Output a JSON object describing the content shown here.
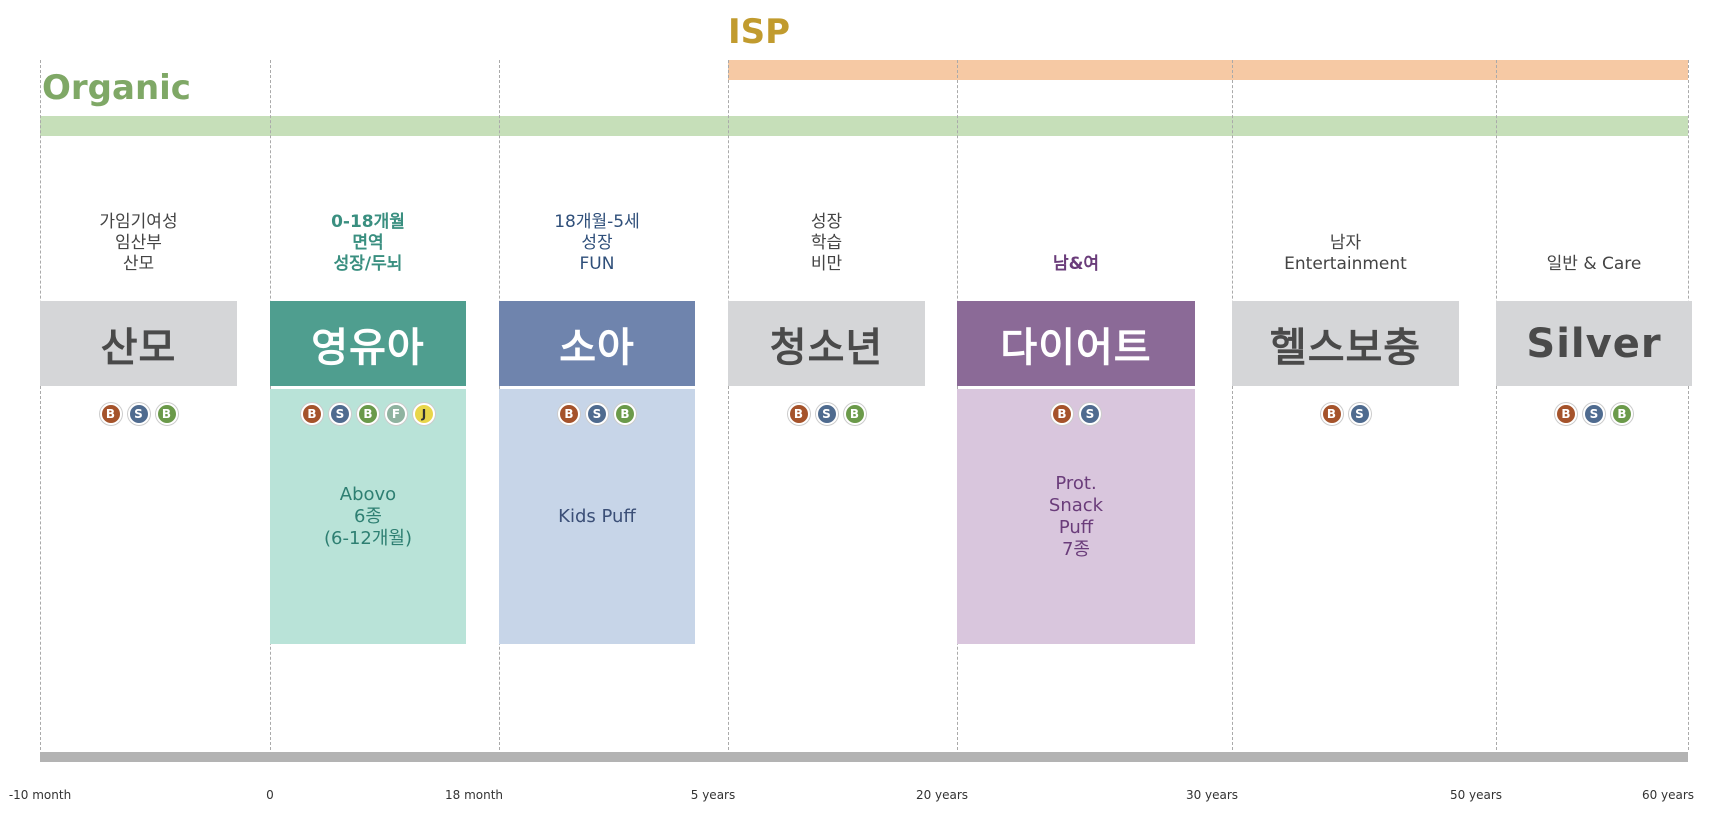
{
  "header": {
    "isp_label": "ISP",
    "organic_label": "Organic"
  },
  "colors": {
    "isp": "#c19b2e",
    "isp_bar": "#f6c9a4",
    "organic": "#7fa866",
    "organic_bar": "#c6dfb9",
    "axis_bar": "#b3b3b3"
  },
  "segments": [
    {
      "name": "산모",
      "labels": [
        "가임기여성",
        "임산부",
        "산모"
      ],
      "label_color": "#444444",
      "box_color": "#d5d6d8",
      "text_color": "#4a4a4a",
      "badges": [
        "B",
        "S",
        "B"
      ],
      "product": null
    },
    {
      "name": "영유아",
      "labels": [
        "0-18개월",
        "면역",
        "성장/두뇌"
      ],
      "label_color": "#3a8f80",
      "box_color": "#4f9e8f",
      "text_color": "#ffffff",
      "badges": [
        "B",
        "S",
        "B",
        "F",
        "J"
      ],
      "product": {
        "lines": [
          "Abovo",
          "6종",
          "(6-12개월)"
        ],
        "bg": "#b9e3d8",
        "color": "#2e7f72"
      }
    },
    {
      "name": "소아",
      "labels": [
        "18개월-5세",
        "성장",
        "FUN"
      ],
      "label_color": "#2f4f7a",
      "box_color": "#6f84ad",
      "text_color": "#ffffff",
      "badges": [
        "B",
        "S",
        "B"
      ],
      "product": {
        "lines": [
          "Kids Puff"
        ],
        "bg": "#c7d5e8",
        "color": "#3b4f77"
      }
    },
    {
      "name": "청소년",
      "labels": [
        "성장",
        "학습",
        "비만"
      ],
      "label_color": "#444444",
      "box_color": "#d5d6d8",
      "text_color": "#4a4a4a",
      "badges": [
        "B",
        "S",
        "B"
      ],
      "product": null
    },
    {
      "name": "다이어트",
      "labels": [
        "남&여"
      ],
      "label_color": "#6a3c7a",
      "box_color": "#8b6a97",
      "text_color": "#ffffff",
      "badges": [
        "B",
        "S"
      ],
      "product": {
        "lines": [
          "Prot.",
          "Snack",
          "Puff",
          "7종"
        ],
        "bg": "#d9c6dd",
        "color": "#6a3c7a"
      }
    },
    {
      "name": "헬스보충",
      "labels": [
        "남자",
        "Entertainment"
      ],
      "label_color": "#444444",
      "box_color": "#d5d6d8",
      "text_color": "#4a4a4a",
      "badges": [
        "B",
        "S"
      ],
      "product": null
    },
    {
      "name": "Silver",
      "labels": [
        "일반 & Care"
      ],
      "label_color": "#444444",
      "box_color": "#d5d6d8",
      "text_color": "#4a4a4a",
      "badges": [
        "B",
        "S",
        "B"
      ],
      "product": null
    }
  ],
  "badge_colors": {
    "B1": "#a5532b",
    "S": "#4f6b8f",
    "B2": "#6b9a4a",
    "F": "#8fb3a0",
    "J": "#e8d64a"
  },
  "axis": {
    "ticks": [
      "-10 month",
      "0",
      "18 month",
      "5 years",
      "20 years",
      "30 years",
      "50 years",
      "60 years"
    ]
  }
}
